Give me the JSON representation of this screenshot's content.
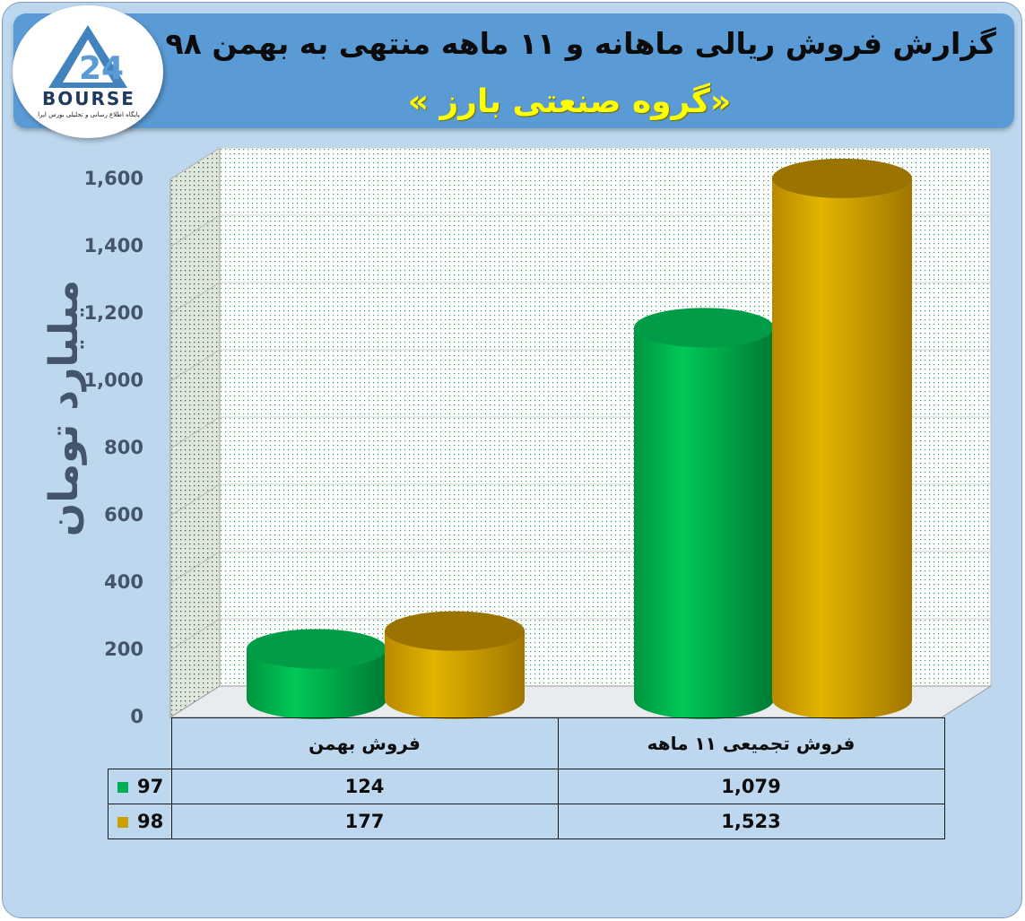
{
  "header": {
    "title": "گزارش فروش ریالی ماهانه و ۱۱ ماهه منتهی به بهمن ۹۸",
    "subtitle": "«گروه صنعتی بارز »"
  },
  "logo": {
    "word": "BOURSE",
    "tagline": "پایگاه اطلاع رسانی و تحلیلی بورس ایرا"
  },
  "colors": {
    "series_97": "#00b050",
    "series_98": "#c9a000",
    "background": "#bdd7ee",
    "header": "#5b9bd5",
    "subtitle": "#ffff00"
  },
  "chart_data": {
    "type": "bar",
    "style": "3d-cylinder",
    "ylabel": "میلیارد تومان",
    "ylim": [
      0,
      1600
    ],
    "yticks": [
      "0",
      "200",
      "400",
      "600",
      "800",
      "1,000",
      "1,200",
      "1,400",
      "1,600"
    ],
    "ytick_values": [
      0,
      200,
      400,
      600,
      800,
      1000,
      1200,
      1400,
      1600
    ],
    "categories": [
      "فروش بهمن",
      "فروش تجمیعی ۱۱ ماهه"
    ],
    "series": [
      {
        "name": "97",
        "values": [
          124,
          1079
        ],
        "labels": [
          "124",
          "1,079"
        ],
        "color": "#00b050"
      },
      {
        "name": "98",
        "values": [
          177,
          1523
        ],
        "labels": [
          "177",
          "1,523"
        ],
        "color": "#c9a000"
      }
    ],
    "grid": true,
    "legend": "data-table"
  }
}
